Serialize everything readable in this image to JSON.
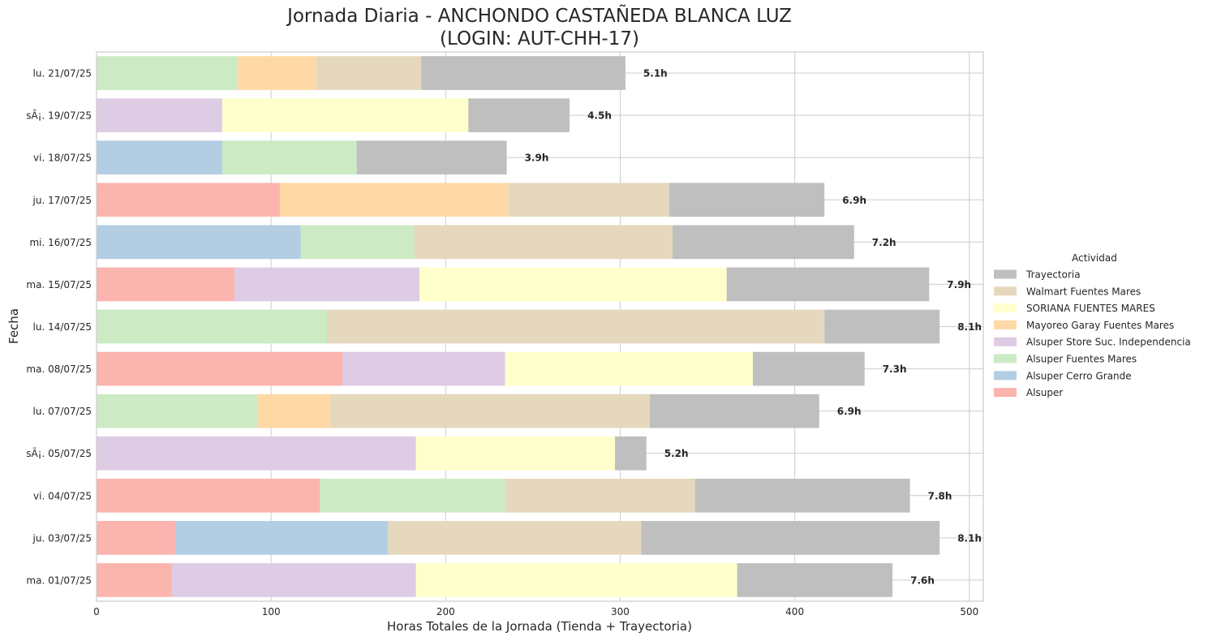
{
  "chart_data": {
    "type": "bar",
    "orientation": "horizontal",
    "stacked": true,
    "title": "Jornada Diaria - ANCHONDO CASTAÑEDA BLANCA LUZ",
    "subtitle": "(LOGIN: AUT-CHH-17)",
    "xlabel": "Horas Totales de la Jornada (Tienda + Trayectoria)",
    "ylabel": "Fecha",
    "xlim": [
      0,
      508
    ],
    "xticks": [
      0,
      100,
      200,
      300,
      400,
      500
    ],
    "grid": true,
    "legend_title": "Actividad",
    "legend_position": "right",
    "categories": [
      "ma. 01/07/25",
      "ju. 03/07/25",
      "vi. 04/07/25",
      "sÃ¡. 05/07/25",
      "lu. 07/07/25",
      "ma. 08/07/25",
      "lu. 14/07/25",
      "ma. 15/07/25",
      "mi. 16/07/25",
      "ju. 17/07/25",
      "vi. 18/07/25",
      "sÃ¡. 19/07/25",
      "lu. 21/07/25"
    ],
    "totals": [
      "7.6h",
      "8.1h",
      "7.8h",
      "5.2h",
      "6.9h",
      "7.3h",
      "8.1h",
      "7.9h",
      "7.2h",
      "6.9h",
      "3.9h",
      "4.5h",
      "5.1h"
    ],
    "series": [
      {
        "name": "Alsuper",
        "color": "#fbb4ae",
        "values": [
          43,
          45,
          128,
          0,
          0,
          141,
          0,
          79,
          0,
          105,
          0,
          0,
          0
        ]
      },
      {
        "name": "Alsuper Cerro Grande",
        "color": "#b3cde3",
        "values": [
          0,
          122,
          0,
          0,
          0,
          0,
          0,
          0,
          117,
          0,
          72,
          0,
          0
        ]
      },
      {
        "name": "Alsuper Fuentes Mares",
        "color": "#ccebc5",
        "values": [
          0,
          0,
          106,
          0,
          92,
          0,
          132,
          0,
          65,
          0,
          77,
          0,
          81
        ]
      },
      {
        "name": "Alsuper Store Suc. Independencia",
        "color": "#decbe4",
        "values": [
          140,
          0,
          0,
          183,
          0,
          93,
          0,
          106,
          0,
          0,
          0,
          72,
          0
        ]
      },
      {
        "name": "Mayoreo Garay Fuentes Mares",
        "color": "#fed9a6",
        "values": [
          0,
          0,
          0,
          0,
          42,
          0,
          0,
          0,
          0,
          131,
          0,
          0,
          45
        ]
      },
      {
        "name": "SORIANA FUENTES MARES",
        "color": "#ffffcc",
        "values": [
          184,
          0,
          0,
          114,
          0,
          142,
          0,
          176,
          0,
          0,
          0,
          141,
          0
        ]
      },
      {
        "name": "Walmart Fuentes Mares",
        "color": "#e5d8bd",
        "values": [
          0,
          145,
          109,
          0,
          183,
          0,
          285,
          0,
          148,
          92,
          0,
          0,
          60
        ]
      },
      {
        "name": "Trayectoria",
        "color": "#bfbfbf",
        "values": [
          89,
          171,
          123,
          18,
          97,
          64,
          66,
          116,
          104,
          89,
          86,
          58,
          117
        ]
      }
    ]
  }
}
